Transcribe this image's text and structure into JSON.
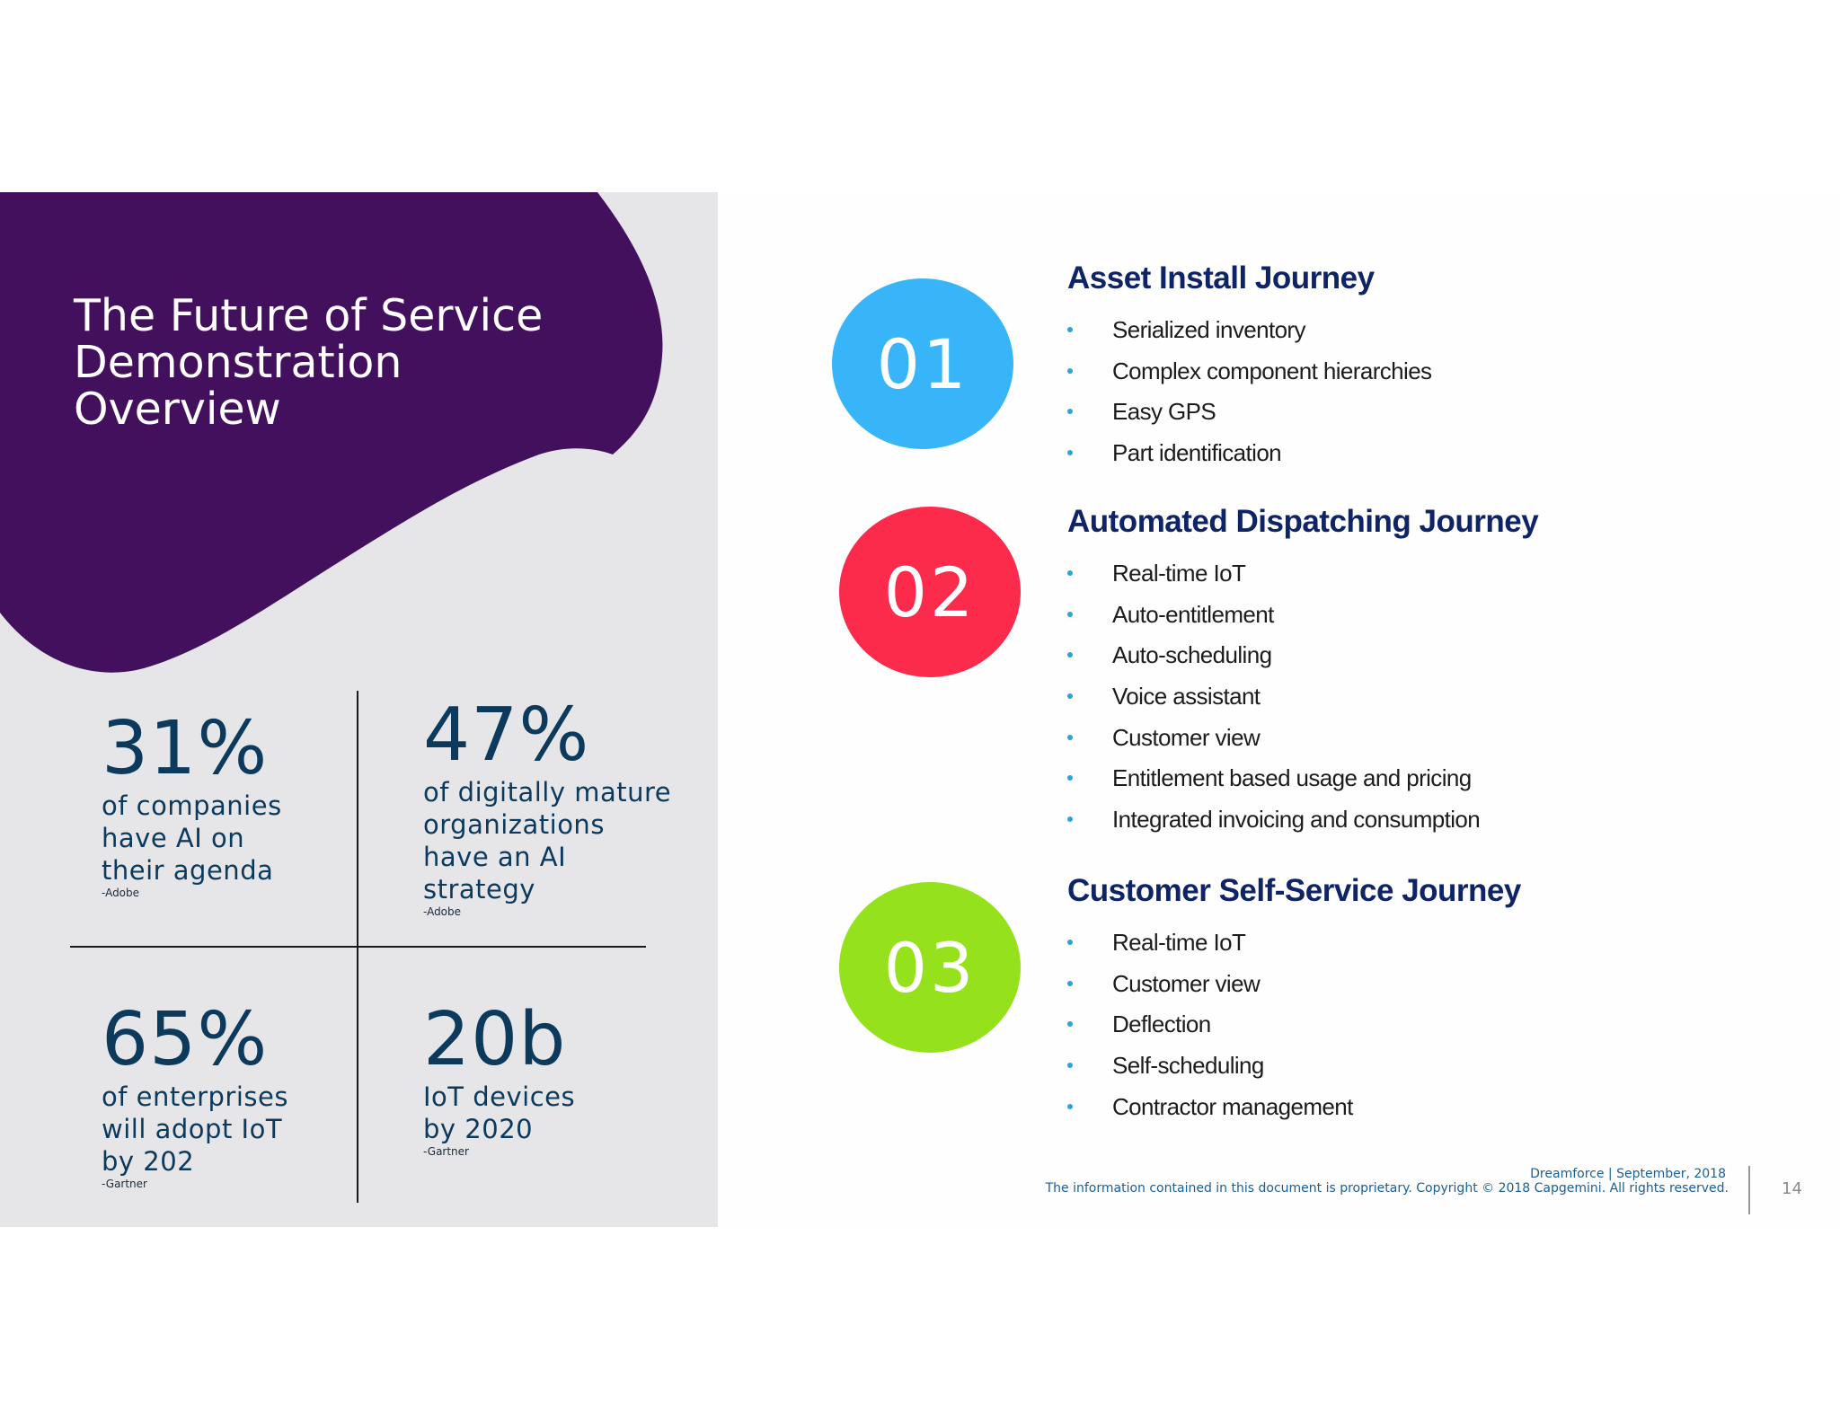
{
  "title": "The Future of Service\nDemonstration\nOverview",
  "colors": {
    "purple": "#42105c",
    "panel": "#e6e5e8",
    "stat_text": "#0b3a5c",
    "heading": "#0f2466",
    "bullet": "#2aa5d8",
    "circle_01": "#38b5f8",
    "circle_02": "#fc2b4c",
    "circle_03": "#95e21c",
    "footer": "#1a5f95"
  },
  "stats": [
    {
      "value": "31%",
      "description": "of companies\nhave AI on\ntheir agenda",
      "source": "-Adobe"
    },
    {
      "value": "47%",
      "description": "of digitally mature\norganizations\nhave an AI\nstrategy",
      "source": "-Adobe"
    },
    {
      "value": "65%",
      "description": "of enterprises\nwill adopt IoT\nby 202",
      "source": "-Gartner"
    },
    {
      "value": "20b",
      "description": "IoT devices\nby 2020",
      "source": "-Gartner"
    }
  ],
  "journeys": [
    {
      "number": "01",
      "title": "Asset Install Journey",
      "items": [
        "Serialized inventory",
        "Complex component hierarchies",
        "Easy GPS",
        "Part identification"
      ]
    },
    {
      "number": "02",
      "title": "Automated Dispatching Journey",
      "items": [
        "Real-time IoT",
        "Auto-entitlement",
        "Auto-scheduling",
        "Voice assistant",
        "Customer view",
        "Entitlement based usage and pricing",
        "Integrated invoicing and consumption"
      ]
    },
    {
      "number": "03",
      "title": "Customer Self-Service Journey",
      "items": [
        "Real-time IoT",
        "Customer view",
        "Deflection",
        "Self-scheduling",
        "Contractor management"
      ]
    }
  ],
  "footer": {
    "event": "Dreamforce | September, 2018",
    "copyright": "The information contained in this document is proprietary. Copyright © 2018 Capgemini. All rights reserved.",
    "page_number": "14"
  }
}
